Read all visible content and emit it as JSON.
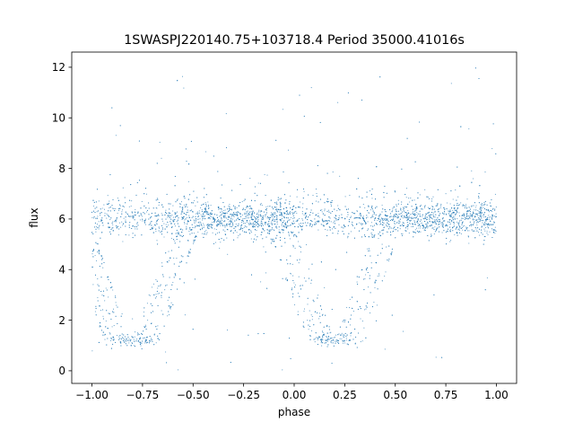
{
  "chart_data": {
    "type": "scatter",
    "title": "1SWASPJ220140.75+103718.4 Period 35000.41016s",
    "xlabel": "phase",
    "ylabel": "flux",
    "xlim": [
      -1.1,
      1.1
    ],
    "ylim": [
      -0.5,
      12.6
    ],
    "xticks": [
      -1.0,
      -0.75,
      -0.5,
      -0.25,
      0.0,
      0.25,
      0.5,
      0.75,
      1.0
    ],
    "xtick_labels": [
      "−1.00",
      "−0.75",
      "−0.50",
      "−0.25",
      "0.00",
      "0.25",
      "0.50",
      "0.75",
      "1.00"
    ],
    "yticks": [
      0,
      2,
      4,
      6,
      8,
      10,
      12
    ],
    "ytick_labels": [
      "0",
      "2",
      "4",
      "6",
      "8",
      "10",
      "12"
    ],
    "grid": false,
    "legend": "none",
    "colors": {
      "points": "#1f77b4"
    },
    "series": [
      {
        "description_values": {
          "baseline_flux": 6.0,
          "baseline_spread": 0.35,
          "eclipse_centers_phase": [
            -0.8,
            0.2
          ],
          "eclipse_min_flux": 1.2,
          "eclipse_half_width_phase": 0.28,
          "phase_range": [
            -1.0,
            1.0
          ],
          "outlier_flux_range": [
            0.0,
            12.0
          ]
        }
      }
    ]
  }
}
